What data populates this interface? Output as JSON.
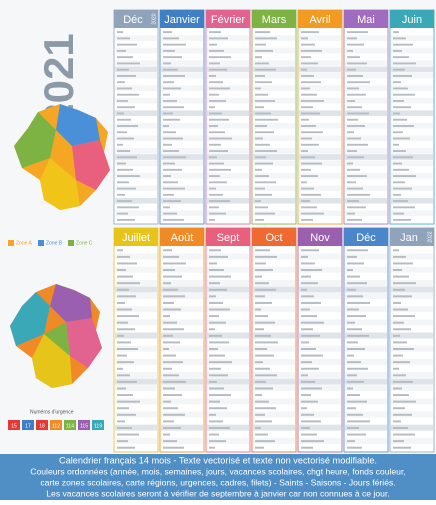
{
  "year": "2021",
  "months_top": [
    {
      "name": "Déc",
      "year": "2020",
      "color": "#8fa3bb"
    },
    {
      "name": "Janvier",
      "color": "#3f7fc4"
    },
    {
      "name": "Février",
      "color": "#e2638f"
    },
    {
      "name": "Mars",
      "color": "#7cb342"
    },
    {
      "name": "Avril",
      "color": "#f39a22"
    },
    {
      "name": "Mai",
      "color": "#a06cc0"
    },
    {
      "name": "Juin",
      "color": "#3aa8b6"
    }
  ],
  "months_bottom": [
    {
      "name": "Juillet",
      "color": "#e6c419"
    },
    {
      "name": "Août",
      "color": "#f08a26"
    },
    {
      "name": "Sept",
      "color": "#e8607e"
    },
    {
      "name": "Oct",
      "color": "#ee6a30"
    },
    {
      "name": "Nov",
      "color": "#9a5fae"
    },
    {
      "name": "Déc",
      "color": "#4a86c8"
    },
    {
      "name": "Jan",
      "year": "2022",
      "color": "#8fa3bb"
    }
  ],
  "zones": [
    "Zone A",
    "Zone B",
    "Zone C"
  ],
  "emergency": {
    "title": "Numéros d'urgence",
    "numbers": [
      "15",
      "17",
      "18",
      "112",
      "114",
      "115",
      "119"
    ]
  },
  "caption": [
    "Calendrier français 14 mois - Texte vectorisé et texte non vectorisé modifiable.",
    "Couleurs ordonnées (année, mois, semaines, jours, vacances scolaires, chgt heure, fonds couleur,",
    "carte zones scolaires, carte régions, urgences, cadres, filets) - Saints - Saisons - Jours fériés.",
    "Les vacances scolaires seront à vérifier de septembre à janvier car non connues à ce jour."
  ]
}
